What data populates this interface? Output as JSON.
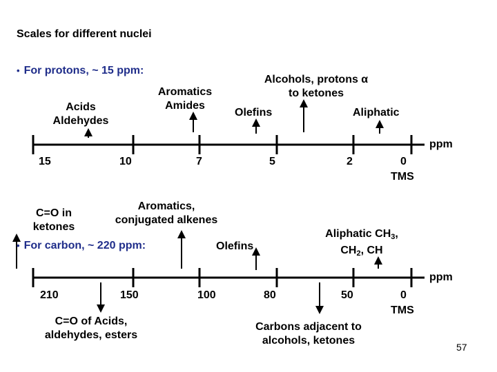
{
  "title": "Scales for different nuclei",
  "proton": {
    "heading": "For protons, ~ 15 ppm:",
    "unit": "ppm",
    "ticks": [
      "15",
      "10",
      "7",
      "5",
      "2",
      "0"
    ],
    "tms": "TMS",
    "labels": {
      "acids_aldehydes": [
        "Acids",
        "Aldehydes"
      ],
      "aromatics_amides": [
        "Aromatics",
        "Amides"
      ],
      "olefins": "Olefins",
      "alcohols": [
        "Alcohols, protons α",
        "to ketones"
      ],
      "aliphatic": "Aliphatic"
    }
  },
  "carbon": {
    "heading": "For carbon, ~ 220 ppm:",
    "unit": "ppm",
    "ticks": [
      "210",
      "150",
      "100",
      "80",
      "50",
      "0"
    ],
    "tms": "TMS",
    "labels": {
      "co_ketones": [
        "C=O in",
        "ketones"
      ],
      "aromatics_conj": [
        "Aromatics,",
        "conjugated alkenes"
      ],
      "olefins": "Olefins",
      "aliphatic_ch3": "Aliphatic CH",
      "aliphatic_ch3_sub": "3",
      "aliphatic_ch3_comma": ",",
      "aliphatic_ch2": "CH",
      "aliphatic_ch2_sub": "2",
      "aliphatic_ch2_tail": ", CH",
      "co_acids": [
        "C=O of Acids,",
        "aldehydes, esters"
      ],
      "carbons_adjacent": [
        "Carbons adjacent to",
        "alcohols, ketones"
      ]
    }
  },
  "page_number": "57"
}
